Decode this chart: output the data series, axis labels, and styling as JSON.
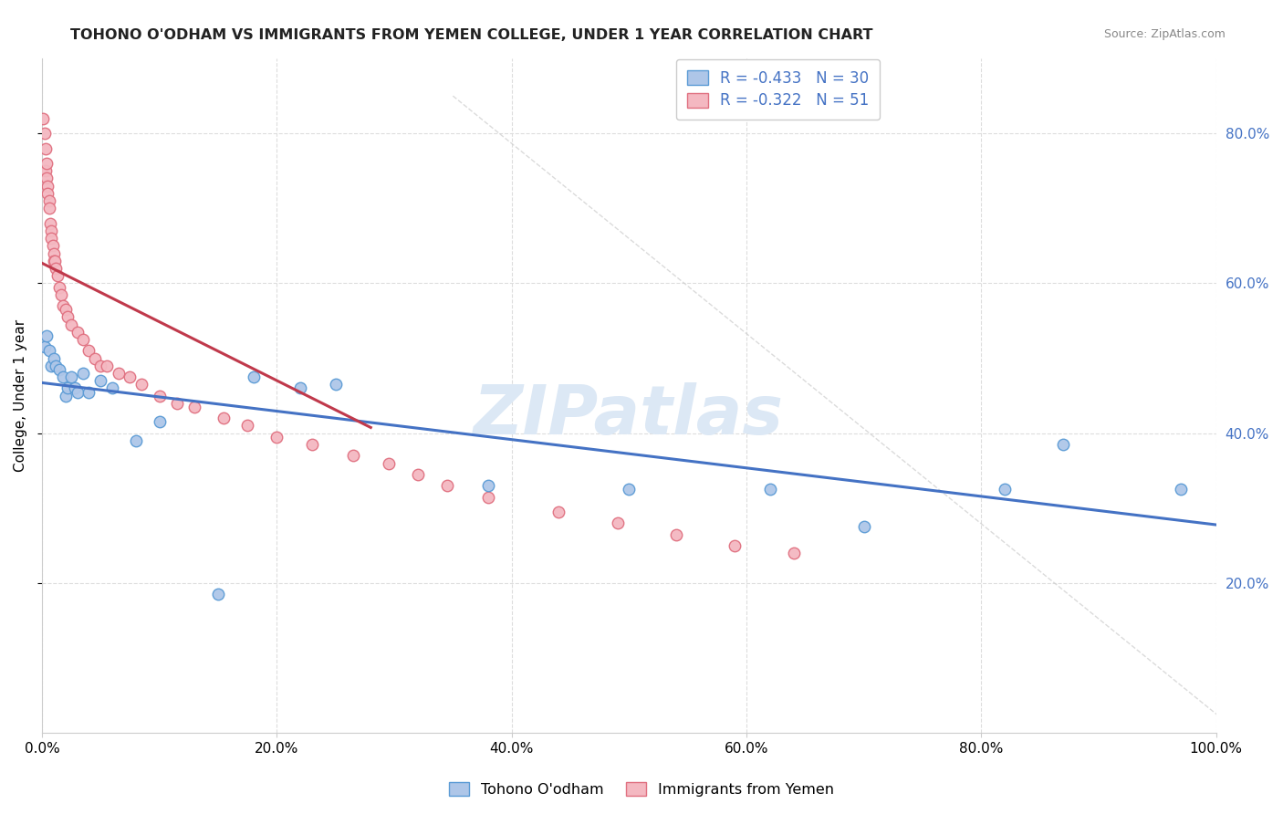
{
  "title": "TOHONO O'ODHAM VS IMMIGRANTS FROM YEMEN COLLEGE, UNDER 1 YEAR CORRELATION CHART",
  "source": "Source: ZipAtlas.com",
  "ylabel": "College, Under 1 year",
  "legend_label_blue": "Tohono O'odham",
  "legend_label_pink": "Immigrants from Yemen",
  "legend_R_blue": "-0.433",
  "legend_N_blue": "30",
  "legend_R_pink": "-0.322",
  "legend_N_pink": "51",
  "x_tick_values": [
    0.0,
    0.2,
    0.4,
    0.6,
    0.8,
    1.0
  ],
  "y_tick_values": [
    0.2,
    0.4,
    0.6,
    0.8
  ],
  "xlim": [
    0.0,
    1.0
  ],
  "ylim": [
    0.0,
    0.9
  ],
  "blue_x": [
    0.002,
    0.004,
    0.006,
    0.008,
    0.01,
    0.012,
    0.015,
    0.018,
    0.02,
    0.022,
    0.025,
    0.028,
    0.03,
    0.035,
    0.04,
    0.05,
    0.06,
    0.08,
    0.1,
    0.15,
    0.18,
    0.22,
    0.25,
    0.38,
    0.5,
    0.62,
    0.7,
    0.82,
    0.87,
    0.97
  ],
  "blue_y": [
    0.515,
    0.53,
    0.51,
    0.49,
    0.5,
    0.49,
    0.485,
    0.475,
    0.45,
    0.46,
    0.475,
    0.46,
    0.455,
    0.48,
    0.455,
    0.47,
    0.46,
    0.39,
    0.415,
    0.185,
    0.475,
    0.46,
    0.465,
    0.33,
    0.325,
    0.325,
    0.275,
    0.325,
    0.385,
    0.325
  ],
  "pink_x": [
    0.001,
    0.002,
    0.003,
    0.003,
    0.004,
    0.004,
    0.005,
    0.005,
    0.006,
    0.006,
    0.007,
    0.008,
    0.008,
    0.009,
    0.01,
    0.01,
    0.011,
    0.012,
    0.013,
    0.015,
    0.016,
    0.018,
    0.02,
    0.022,
    0.025,
    0.03,
    0.035,
    0.04,
    0.045,
    0.05,
    0.055,
    0.065,
    0.075,
    0.085,
    0.1,
    0.115,
    0.13,
    0.155,
    0.175,
    0.2,
    0.23,
    0.265,
    0.295,
    0.32,
    0.345,
    0.38,
    0.44,
    0.49,
    0.54,
    0.59,
    0.64
  ],
  "pink_y": [
    0.82,
    0.8,
    0.78,
    0.75,
    0.76,
    0.74,
    0.73,
    0.72,
    0.71,
    0.7,
    0.68,
    0.67,
    0.66,
    0.65,
    0.64,
    0.63,
    0.63,
    0.62,
    0.61,
    0.595,
    0.585,
    0.57,
    0.565,
    0.555,
    0.545,
    0.535,
    0.525,
    0.51,
    0.5,
    0.49,
    0.49,
    0.48,
    0.475,
    0.465,
    0.45,
    0.44,
    0.435,
    0.42,
    0.41,
    0.395,
    0.385,
    0.37,
    0.36,
    0.345,
    0.33,
    0.315,
    0.295,
    0.28,
    0.265,
    0.25,
    0.24
  ],
  "blue_color": "#aec6e8",
  "blue_edge": "#5b9bd5",
  "pink_color": "#f4b8c1",
  "pink_edge": "#e07080",
  "blue_line_color": "#4472c4",
  "pink_line_color": "#c0394b",
  "diagonal_line_color": "#cccccc",
  "grid_color": "#dddddd",
  "title_color": "#222222",
  "watermark_color": "#dce8f5",
  "watermark_text": "ZIPatlas",
  "source_color": "#888888",
  "right_axis_color": "#4472c4",
  "marker_size": 9
}
